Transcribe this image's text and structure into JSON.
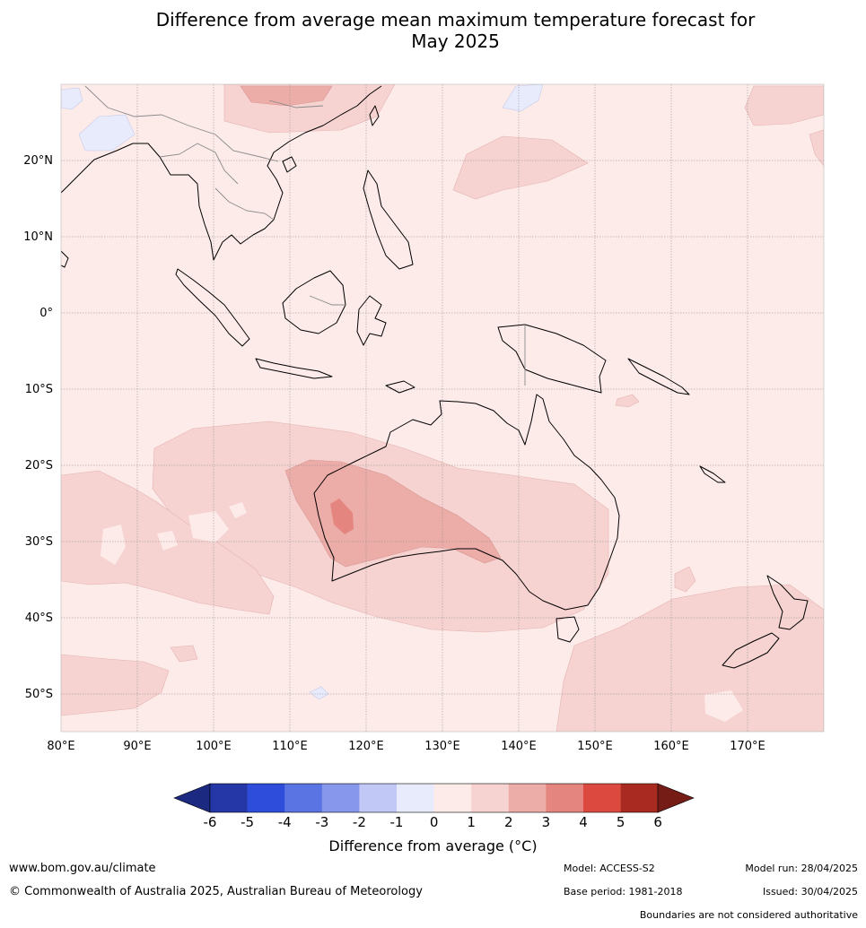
{
  "title_line1": "Difference from average mean maximum temperature forecast for",
  "title_line2": "May 2025",
  "map": {
    "lon_ticks": [
      "80°E",
      "90°E",
      "100°E",
      "110°E",
      "120°E",
      "130°E",
      "140°E",
      "150°E",
      "160°E",
      "170°E"
    ],
    "lat_ticks": [
      "20°N",
      "10°N",
      "0°",
      "10°S",
      "20°S",
      "30°S",
      "40°S",
      "50°S"
    ],
    "lon_range": [
      80,
      180
    ],
    "lat_range": [
      -55,
      30
    ]
  },
  "colorbar": {
    "ticks": [
      "-6",
      "-5",
      "-4",
      "-3",
      "-2",
      "-1",
      "0",
      "1",
      "2",
      "3",
      "4",
      "5",
      "6"
    ],
    "colors": [
      "#2536a6",
      "#2f4ddb",
      "#5b74e3",
      "#8798ec",
      "#c1c8f5",
      "#e8ebfb",
      "#fdebea",
      "#f6d3d1",
      "#ecaca8",
      "#e5857f",
      "#dc4a3f",
      "#a82a21"
    ],
    "under_color": "#1b2a80",
    "over_color": "#761c17",
    "label": "Difference from average (°C)"
  },
  "footer": {
    "website": "www.bom.gov.au/climate",
    "copyright": "© Commonwealth of Australia 2025, Australian Bureau of Meteorology",
    "model": "Model: ACCESS-S2",
    "base_period": "Base period: 1981-2018",
    "model_run": "Model run: 28/04/2025",
    "issued": "Issued: 30/04/2025",
    "disclaimer": "Boundaries are not considered authoritative"
  }
}
